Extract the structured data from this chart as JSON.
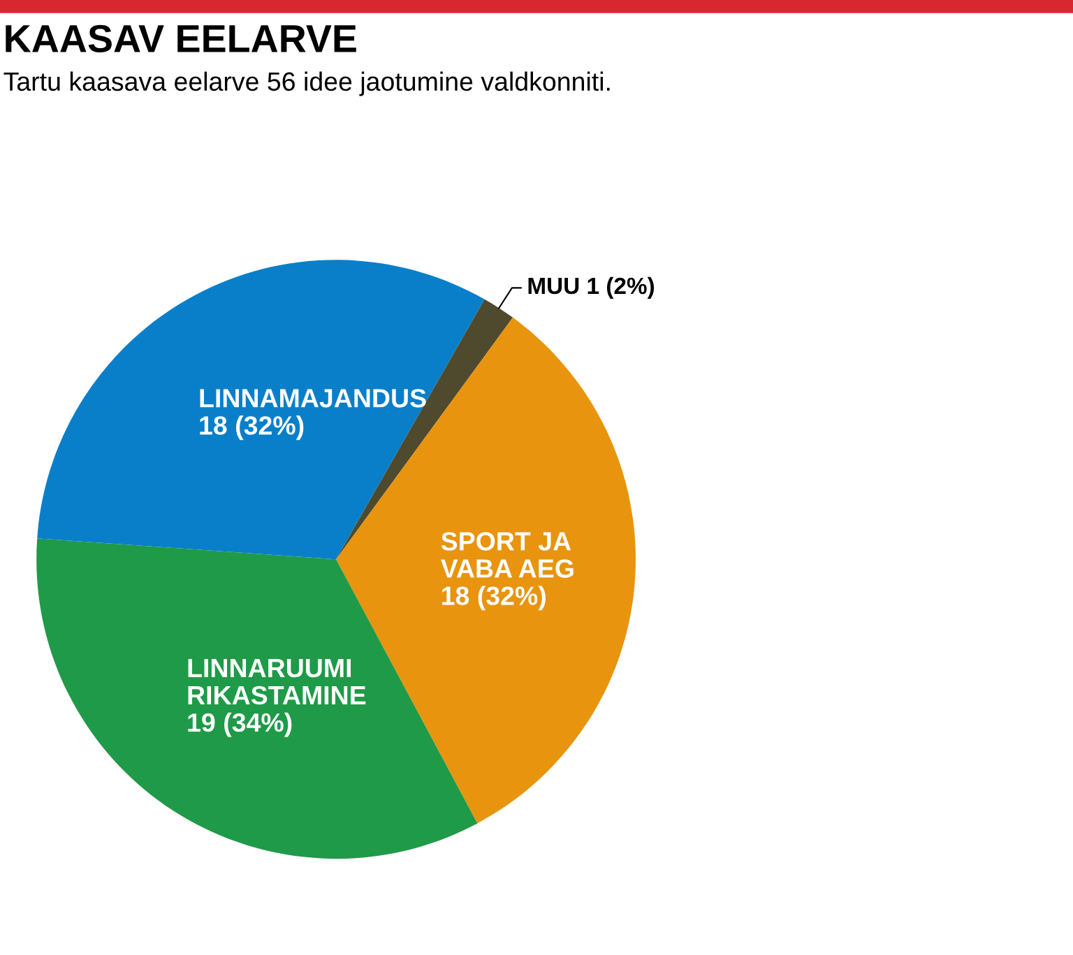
{
  "chart_data": {
    "type": "pie",
    "title": "KAASAV EELARVE",
    "subtitle": "Tartu kaasava eelarve 56 idee jaotumine valdkonniti.",
    "categories": [
      "LINNAMAJANDUS",
      "MUU",
      "SPORT JA\nVABA AEG",
      "LINNARUUMI\nRIKASTAMINE"
    ],
    "values": [
      18,
      1,
      18,
      19
    ],
    "value_labels": [
      "18 (32%)",
      "1 (2%)",
      "18 (32%)",
      "19 (34%)"
    ],
    "colors": [
      "#0a7fc9",
      "#4f4a2e",
      "#e8940f",
      "#1f9a48"
    ],
    "legend": false
  }
}
